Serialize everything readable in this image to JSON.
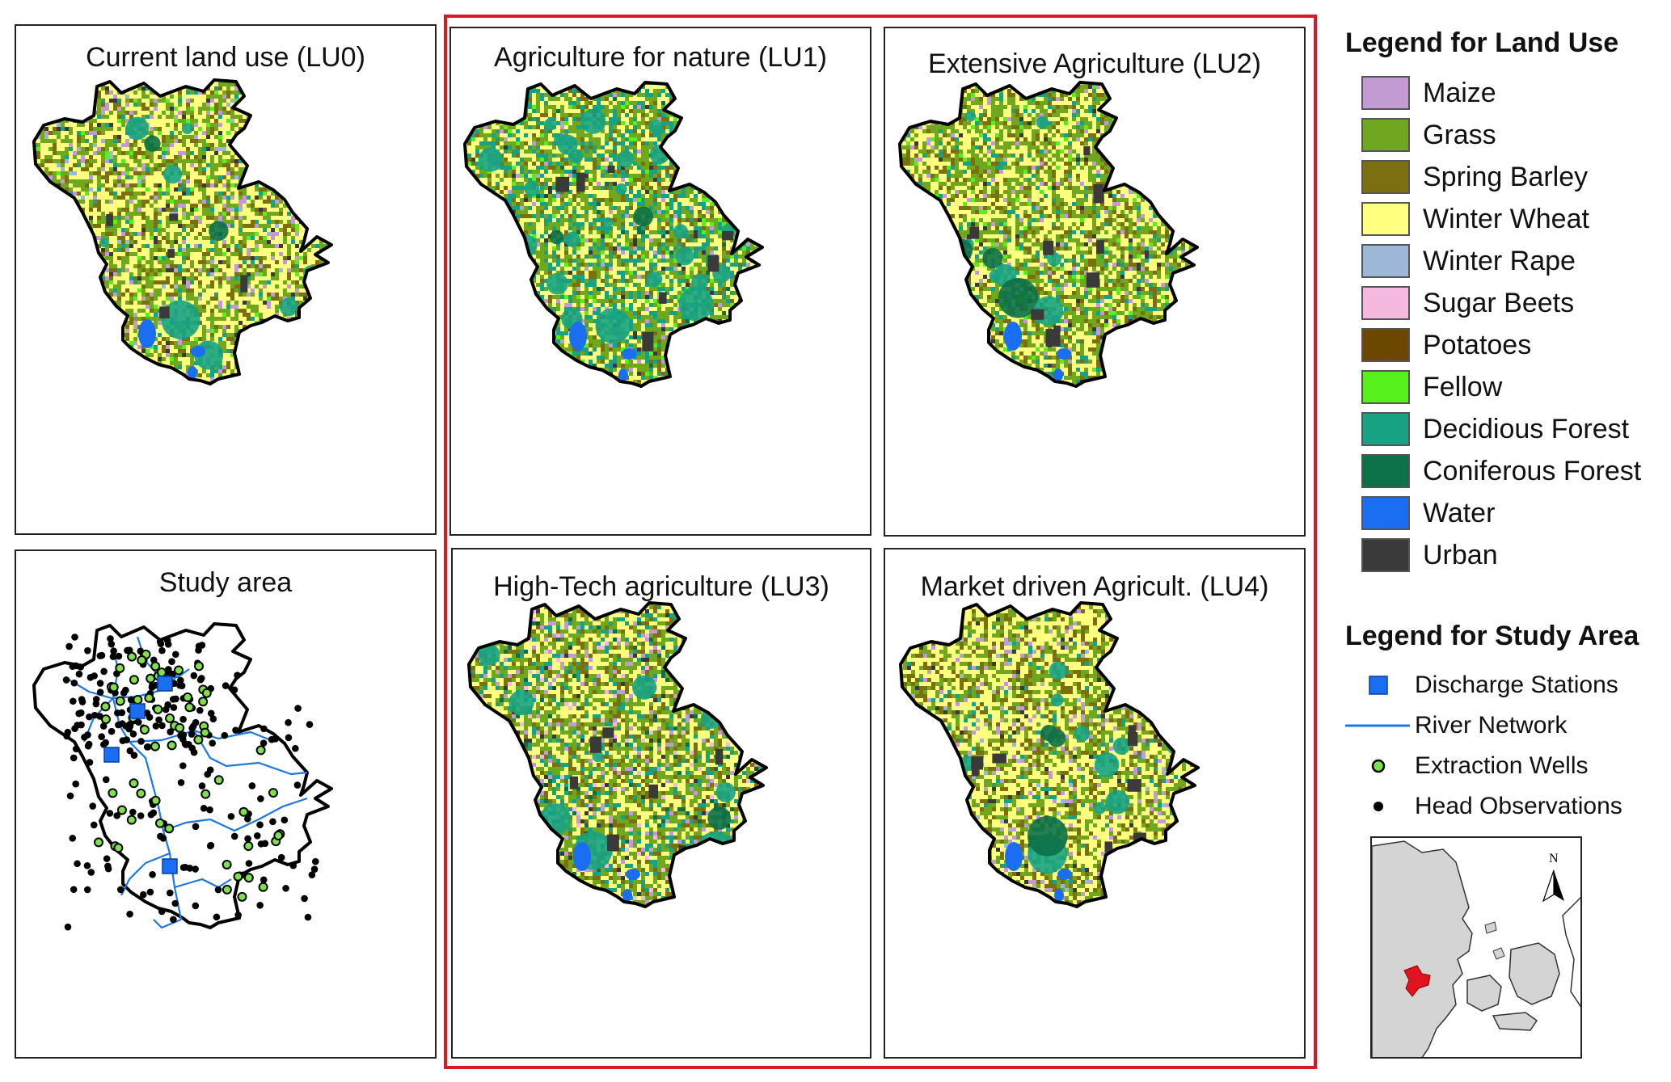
{
  "panels": [
    {
      "id": "lu0",
      "title": "Current land use (LU0)",
      "profile": "lu0"
    },
    {
      "id": "lu1",
      "title": "Agriculture for nature (LU1)",
      "profile": "lu1"
    },
    {
      "id": "lu2",
      "title": "Extensive Agriculture (LU2)",
      "profile": "lu2"
    },
    {
      "id": "study",
      "title": "Study area"
    },
    {
      "id": "lu3",
      "title": "High-Tech agriculture (LU3)",
      "profile": "lu3"
    },
    {
      "id": "lu4",
      "title": "Market driven Agricult. (LU4)",
      "profile": "lu4"
    }
  ],
  "legend_land_use": {
    "title": "Legend for Land Use",
    "items": [
      {
        "label": "Maize",
        "color": "#c39bd3"
      },
      {
        "label": "Grass",
        "color": "#6fa81e"
      },
      {
        "label": "Spring Barley",
        "color": "#7a7010"
      },
      {
        "label": "Winter Wheat",
        "color": "#ffff80"
      },
      {
        "label": "Winter Rape",
        "color": "#9db7d6"
      },
      {
        "label": "Sugar Beets",
        "color": "#f5b9e0"
      },
      {
        "label": "Potatoes",
        "color": "#6b4700"
      },
      {
        "label": "Fellow",
        "color": "#56f01a"
      },
      {
        "label": "Decidious Forest",
        "color": "#17a383"
      },
      {
        "label": "Coniferous Forest",
        "color": "#0c7048"
      },
      {
        "label": "Water",
        "color": "#1a6ef2"
      },
      {
        "label": "Urban",
        "color": "#3a3a3a"
      }
    ]
  },
  "legend_study_area": {
    "title": "Legend for Study Area",
    "items": [
      {
        "label": "Discharge Stations",
        "symbol": "square",
        "color": "#1a6ef2"
      },
      {
        "label": "River Network",
        "symbol": "line",
        "color": "#1a78e0"
      },
      {
        "label": "Extraction Wells",
        "symbol": "green-dot",
        "color": "#7ee04a"
      },
      {
        "label": "Head Observations",
        "symbol": "black-dot",
        "color": "#000000"
      }
    ]
  },
  "inset": {
    "north_label": "N"
  },
  "colors": {
    "scenario_frame": "#d71920",
    "outline": "#000000"
  }
}
